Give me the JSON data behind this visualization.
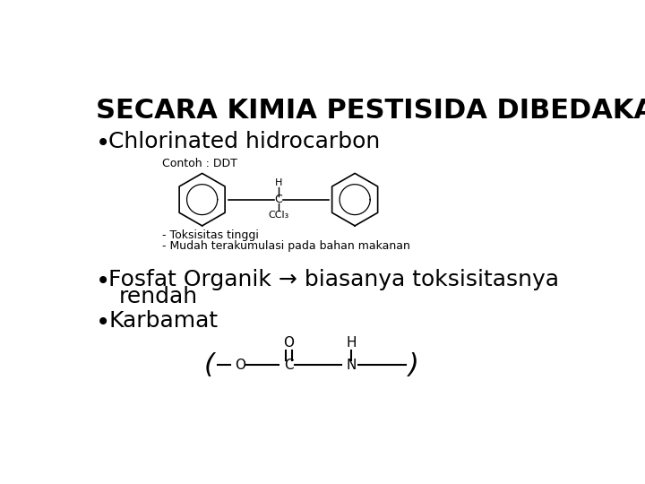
{
  "title": "SECARA KIMIA PESTISIDA DIBEDAKAN",
  "title_fontsize": 22,
  "title_fontweight": "bold",
  "bg_color": "#ffffff",
  "text_color": "#000000",
  "bullet1": "Chlorinated hidrocarbon",
  "bullet1_fontsize": 18,
  "contoh_label": "Contoh : DDT",
  "contoh_fontsize": 9,
  "toksisitas_text": "- Toksisitas tinggi",
  "mudah_text": "- Mudah terakumulasi pada bahan makanan",
  "note_fontsize": 9,
  "bullet2_line1": "Fosfat Organik → biasanya toksisitasnya",
  "bullet2_line2": "rendah",
  "bullet2_fontsize": 18,
  "bullet3": "Karbamat",
  "bullet3_fontsize": 18
}
